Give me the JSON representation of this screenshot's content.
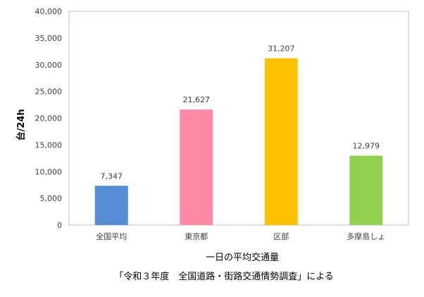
{
  "chart_data": {
    "type": "bar",
    "categories": [
      "全国平均",
      "東京都",
      "区部",
      "多摩島しょ"
    ],
    "values": [
      7347,
      21627,
      31207,
      12979
    ],
    "data_labels": [
      "7,347",
      "21,627",
      "31,207",
      "12,979"
    ],
    "colors": [
      "#558ED5",
      "#FF8AA6",
      "#FFC000",
      "#92D050"
    ],
    "ylabel": "台/24h",
    "xlabel": "一日の平均交通量",
    "ylim": [
      0,
      40000
    ],
    "y_ticks": [
      0,
      5000,
      10000,
      15000,
      20000,
      25000,
      30000,
      35000,
      40000
    ],
    "y_tick_labels": [
      "0",
      "5,000",
      "10,000",
      "15,000",
      "20,000",
      "25,000",
      "30,000",
      "35,000",
      "40,000"
    ],
    "grid": false,
    "legend": "none"
  },
  "source_note": "「令和３年度　全国道路・街路交通情勢調査」による"
}
